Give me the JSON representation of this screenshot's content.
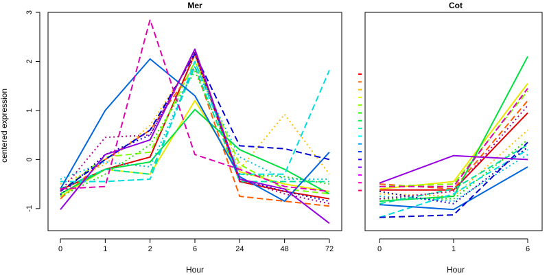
{
  "colors": [
    "#ff0000",
    "#ff6000",
    "#ffbf00",
    "#dfff00",
    "#80ff00",
    "#20ff00",
    "#00ff40",
    "#00ff9f",
    "#00ffff",
    "#009fff",
    "#0040ff",
    "#2000ff",
    "#8000ff",
    "#df00ff",
    "#ff00bf",
    "#ff0060"
  ],
  "chart_data": [
    {
      "type": "line",
      "title": "Mer",
      "xlabel": "Hour",
      "ylabel": "centered expression",
      "categories": [
        "0",
        "1",
        "2",
        "6",
        "24",
        "48",
        "72"
      ],
      "ylim": [
        -1.45,
        3.0
      ],
      "yticks": [
        "-1",
        "0",
        "1",
        "2",
        "3"
      ],
      "grid": false,
      "series": [
        {
          "color": "#e00000",
          "dash": "solid",
          "values": [
            -0.62,
            -0.2,
            0.05,
            2.15,
            -0.45,
            -0.65,
            -0.8
          ]
        },
        {
          "color": "#ff5f00",
          "dash": "dashed",
          "values": [
            -0.8,
            0.0,
            0.6,
            1.9,
            -0.75,
            -0.85,
            -0.95
          ]
        },
        {
          "color": "#ffbf00",
          "dash": "dotted",
          "values": [
            -0.5,
            -0.1,
            0.7,
            2.1,
            -0.2,
            0.92,
            -0.3
          ]
        },
        {
          "color": "#e8e800",
          "dash": "solid",
          "values": [
            -0.75,
            -0.2,
            -0.3,
            1.2,
            -0.25,
            -0.5,
            -0.65
          ]
        },
        {
          "color": "#7fff00",
          "dash": "dashed",
          "values": [
            -0.65,
            0.05,
            0.15,
            2.0,
            -0.1,
            -0.6,
            -0.7
          ]
        },
        {
          "color": "#20e000",
          "dash": "dotted",
          "values": [
            -0.75,
            -0.3,
            0.3,
            1.8,
            -0.3,
            -0.35,
            -0.5
          ]
        },
        {
          "color": "#00e040",
          "dash": "solid",
          "values": [
            -0.7,
            -0.2,
            -0.05,
            1.02,
            0.2,
            -0.2,
            -0.7
          ]
        },
        {
          "color": "#00e09f",
          "dash": "dashed",
          "values": [
            -0.6,
            -0.2,
            -0.3,
            1.9,
            -0.45,
            -0.45,
            -0.45
          ]
        },
        {
          "color": "#00dddd",
          "dash": "dashed",
          "values": [
            -0.45,
            -0.45,
            -0.4,
            2.0,
            -0.3,
            -0.3,
            1.82
          ]
        },
        {
          "color": "#00c0e0",
          "dash": "dotted",
          "values": [
            -0.4,
            -0.05,
            -0.15,
            1.9,
            0.05,
            -0.4,
            -0.4
          ]
        },
        {
          "color": "#0066dd",
          "dash": "solid",
          "values": [
            -0.6,
            1.0,
            2.05,
            1.3,
            -0.35,
            -0.85,
            0.15
          ]
        },
        {
          "color": "#0000d0",
          "dash": "dashed",
          "values": [
            -0.65,
            0.0,
            0.6,
            2.15,
            0.28,
            0.22,
            0.0
          ]
        },
        {
          "color": "#2000c0",
          "dash": "dotted",
          "values": [
            -0.72,
            0.1,
            0.5,
            2.2,
            -0.4,
            -0.65,
            -0.85
          ]
        },
        {
          "color": "#9400e0",
          "dash": "solid",
          "values": [
            -1.02,
            0.1,
            0.4,
            2.25,
            -0.4,
            -0.6,
            -1.3
          ]
        },
        {
          "color": "#df00b0",
          "dash": "dashed",
          "values": [
            -0.6,
            -0.55,
            2.85,
            0.1,
            -0.2,
            -0.55,
            -0.65
          ]
        },
        {
          "color": "#b00090",
          "dash": "dotted",
          "values": [
            -0.65,
            0.45,
            0.5,
            2.2,
            -0.4,
            -0.7,
            -0.9
          ]
        }
      ]
    },
    {
      "type": "line",
      "title": "Cot",
      "xlabel": "Hour",
      "ylabel": "",
      "categories": [
        "0",
        "1",
        "6"
      ],
      "ylim": [
        -1.45,
        3.0
      ],
      "grid": false,
      "series": [
        {
          "color": "#e00000",
          "dash": "solid",
          "values": [
            -0.62,
            -0.62,
            0.95
          ]
        },
        {
          "color": "#ff5f00",
          "dash": "dashed",
          "values": [
            -0.5,
            -0.6,
            1.2
          ]
        },
        {
          "color": "#ffbf00",
          "dash": "dotted",
          "values": [
            -0.7,
            -0.75,
            0.6
          ]
        },
        {
          "color": "#e8e800",
          "dash": "solid",
          "values": [
            -0.6,
            -0.45,
            1.55
          ]
        },
        {
          "color": "#7fff00",
          "dash": "dashed",
          "values": [
            -0.55,
            -0.5,
            1.4
          ]
        },
        {
          "color": "#20e000",
          "dash": "dotted",
          "values": [
            -0.8,
            -0.8,
            0.4
          ]
        },
        {
          "color": "#00e040",
          "dash": "solid",
          "values": [
            -0.85,
            -0.75,
            2.1
          ]
        },
        {
          "color": "#00e09f",
          "dash": "dashed",
          "values": [
            -0.9,
            -0.6,
            0.3
          ]
        },
        {
          "color": "#00dddd",
          "dash": "dashed",
          "values": [
            -1.18,
            -0.7,
            0.2
          ]
        },
        {
          "color": "#00c0e0",
          "dash": "dotted",
          "values": [
            -0.75,
            -0.85,
            0.1
          ]
        },
        {
          "color": "#0066dd",
          "dash": "solid",
          "values": [
            -0.92,
            -1.02,
            -0.15
          ]
        },
        {
          "color": "#0000d0",
          "dash": "dashed",
          "values": [
            -1.18,
            -1.13,
            0.35
          ]
        },
        {
          "color": "#2000c0",
          "dash": "dotted",
          "values": [
            -0.65,
            -0.9,
            0.25
          ]
        },
        {
          "color": "#9400e0",
          "dash": "solid",
          "values": [
            -0.48,
            0.08,
            0.0
          ]
        },
        {
          "color": "#df00b0",
          "dash": "dashed",
          "values": [
            -0.55,
            -0.55,
            1.45
          ]
        },
        {
          "color": "#b00090",
          "dash": "dotted",
          "values": [
            -0.8,
            -0.65,
            1.1
          ]
        }
      ]
    }
  ]
}
